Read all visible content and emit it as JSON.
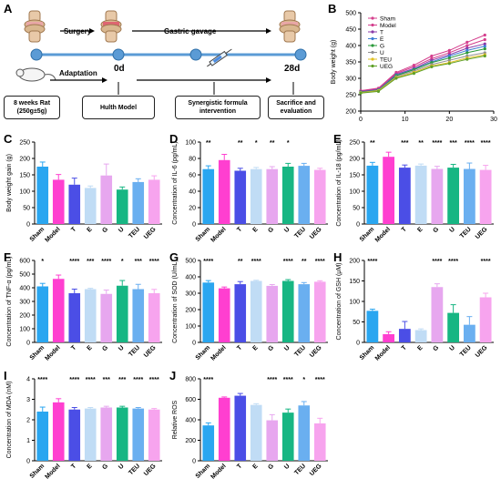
{
  "schematic": {
    "label_surgery": "Surgery",
    "label_gavage": "Gastric gavage",
    "label_adaptation": "Adaptation",
    "label_day0": "0d",
    "label_day28": "28d",
    "box_rat": "8 weeks Rat\n(250g±5g)",
    "box_hulth": "Hulth Model",
    "box_formula": "Synergistic formula\nintervention",
    "box_sacrifice": "Sacrifice and\nevaluation"
  },
  "panel_letters": [
    "A",
    "B",
    "C",
    "D",
    "E",
    "F",
    "G",
    "H",
    "I",
    "J"
  ],
  "groups": [
    "Sham",
    "Model",
    "T",
    "E",
    "G",
    "U",
    "TEU",
    "UEG"
  ],
  "group_colors": [
    "#2aa6f0",
    "#ff3fd0",
    "#4b4ee6",
    "#c0dcf5",
    "#e7a7ef",
    "#17b683",
    "#6aaff0",
    "#f7a4ee"
  ],
  "line_colors": [
    "#d43f8d",
    "#d43f8d",
    "#8b3aa8",
    "#3f7fd4",
    "#2a9a3a",
    "#8f8f8f",
    "#e0c020",
    "#5fa028"
  ],
  "chart_data": [
    {
      "id": "B",
      "type": "line",
      "ylabel": "Body weight (g)",
      "x": [
        0,
        4,
        8,
        12,
        16,
        20,
        24,
        28
      ],
      "xlim": [
        0,
        30
      ],
      "ylim": [
        200,
        500
      ],
      "xticks": [
        0,
        10,
        20,
        30
      ],
      "yticks": [
        200,
        250,
        300,
        350,
        400,
        450,
        500
      ],
      "legend": "top-left",
      "series": [
        {
          "name": "Sham",
          "values": [
            262,
            270,
            318,
            340,
            368,
            385,
            410,
            432
          ]
        },
        {
          "name": "Model",
          "values": [
            262,
            268,
            315,
            335,
            360,
            378,
            400,
            418
          ]
        },
        {
          "name": "T",
          "values": [
            260,
            266,
            312,
            330,
            355,
            372,
            392,
            405
          ]
        },
        {
          "name": "E",
          "values": [
            258,
            265,
            310,
            328,
            350,
            368,
            385,
            398
          ]
        },
        {
          "name": "G",
          "values": [
            258,
            264,
            308,
            326,
            348,
            362,
            378,
            390
          ]
        },
        {
          "name": "U",
          "values": [
            257,
            263,
            305,
            322,
            342,
            355,
            368,
            378
          ]
        },
        {
          "name": "TEU",
          "values": [
            256,
            262,
            302,
            318,
            338,
            348,
            362,
            372
          ]
        },
        {
          "name": "UEG",
          "values": [
            255,
            260,
            300,
            315,
            335,
            345,
            358,
            368
          ]
        }
      ]
    },
    {
      "id": "C",
      "type": "bar",
      "ylabel": "Body weight gain (g)",
      "ylim": [
        0,
        250
      ],
      "yticks": [
        0,
        50,
        100,
        150,
        200,
        250
      ],
      "values": [
        175,
        135,
        120,
        110,
        148,
        105,
        128,
        135
      ],
      "errors": [
        14,
        16,
        20,
        6,
        35,
        8,
        10,
        12
      ],
      "sig": [
        "",
        "",
        "",
        "",
        "",
        "",
        "",
        ""
      ]
    },
    {
      "id": "D",
      "type": "bar",
      "ylabel": "Concentration of IL-6 (pg/mL)",
      "ylim": [
        0,
        100
      ],
      "yticks": [
        0,
        20,
        40,
        60,
        80,
        100
      ],
      "values": [
        67,
        78,
        65,
        67,
        67,
        70,
        71,
        66
      ],
      "errors": [
        4,
        7,
        3,
        2,
        3,
        4,
        3,
        2
      ],
      "sig": [
        "**",
        "",
        "**",
        "*",
        "**",
        "*",
        "",
        ""
      ]
    },
    {
      "id": "E",
      "type": "bar",
      "ylabel": "Concentration of IL-18 (pg/mL)",
      "ylim": [
        0,
        250
      ],
      "yticks": [
        0,
        50,
        100,
        150,
        200,
        250
      ],
      "values": [
        178,
        205,
        172,
        178,
        168,
        172,
        168,
        165
      ],
      "errors": [
        10,
        14,
        8,
        5,
        8,
        10,
        18,
        14
      ],
      "sig": [
        "**",
        "",
        "***",
        "**",
        "****",
        "***",
        "****",
        "****"
      ]
    },
    {
      "id": "F",
      "type": "bar",
      "ylabel": "Concentration of TNF-α (pg/mL)",
      "ylim": [
        0,
        600
      ],
      "yticks": [
        0,
        100,
        200,
        300,
        400,
        500,
        600
      ],
      "values": [
        410,
        465,
        360,
        390,
        355,
        415,
        390,
        360
      ],
      "errors": [
        22,
        28,
        30,
        6,
        28,
        38,
        35,
        28
      ],
      "sig": [
        "*",
        "",
        "****",
        "***",
        "****",
        "*",
        "***",
        "****"
      ]
    },
    {
      "id": "G",
      "type": "bar",
      "ylabel": "Concentration of SOD (U/mL)",
      "ylim": [
        0,
        500
      ],
      "yticks": [
        0,
        100,
        200,
        300,
        400,
        500
      ],
      "values": [
        365,
        330,
        355,
        375,
        345,
        375,
        355,
        370
      ],
      "errors": [
        12,
        8,
        16,
        4,
        8,
        8,
        10,
        6
      ],
      "sig": [
        "****",
        "",
        "**",
        "****",
        "",
        "****",
        "**",
        "****"
      ]
    },
    {
      "id": "H",
      "type": "bar",
      "ylabel": "Concentration of GSH (μM)",
      "ylim": [
        0,
        200
      ],
      "yticks": [
        0,
        50,
        100,
        150,
        200
      ],
      "values": [
        77,
        20,
        33,
        30,
        135,
        72,
        43,
        110
      ],
      "errors": [
        4,
        6,
        18,
        3,
        8,
        20,
        20,
        10
      ],
      "sig": [
        "****",
        "",
        "",
        "",
        "****",
        "****",
        "",
        "****"
      ]
    },
    {
      "id": "I",
      "type": "bar",
      "ylabel": "Concentration of MDA (nM)",
      "ylim": [
        0,
        4
      ],
      "yticks": [
        0,
        1,
        2,
        3,
        4
      ],
      "values": [
        2.4,
        2.85,
        2.5,
        2.55,
        2.6,
        2.6,
        2.55,
        2.5
      ],
      "errors": [
        0.22,
        0.18,
        0.1,
        0.05,
        0.06,
        0.06,
        0.05,
        0.05
      ],
      "sig": [
        "****",
        "",
        "****",
        "****",
        "***",
        "***",
        "****",
        "****"
      ]
    },
    {
      "id": "J",
      "type": "bar",
      "ylabel": "Relative ROS",
      "ylim": [
        0,
        800
      ],
      "yticks": [
        0,
        200,
        400,
        600,
        800
      ],
      "values": [
        345,
        615,
        635,
        545,
        395,
        470,
        540,
        365
      ],
      "errors": [
        25,
        8,
        22,
        12,
        55,
        35,
        38,
        50
      ],
      "sig": [
        "****",
        "",
        "",
        "",
        "****",
        "****",
        "*",
        "****"
      ]
    }
  ]
}
